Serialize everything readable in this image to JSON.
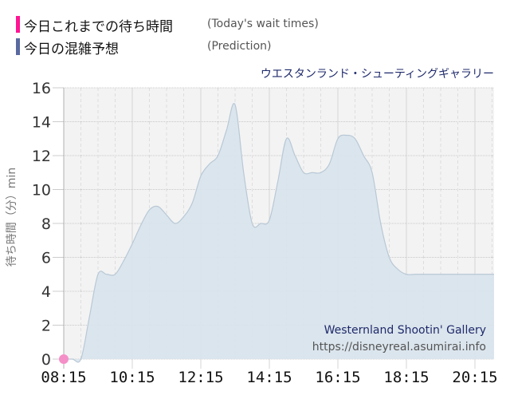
{
  "legend": {
    "items": [
      {
        "label": "今日これまでの待ち時間",
        "sub": "(Today's wait times)",
        "color": "#ff1493"
      },
      {
        "label": "今日の混雑予想",
        "sub": "(Prediction)",
        "color": "#5a6aa0"
      }
    ]
  },
  "ride_title": "ウエスタンランド・シューティングギャラリー",
  "y_axis_label": "待ち時間（分）min",
  "watermark": {
    "name": "Westernland Shootin' Gallery",
    "url": "https://disneyreal.asumirai.info"
  },
  "colors": {
    "area_fill": "#d8e3ec",
    "area_line": "#b8c8d6",
    "plot_bg": "#f3f3f3",
    "today_dot": "#f48fc8"
  },
  "chart_data": {
    "type": "area",
    "title": "ウエスタンランド・シューティングギャラリー",
    "xlabel": "",
    "ylabel": "待ち時間（分）min",
    "ylim": [
      0,
      16
    ],
    "yticks": [
      0,
      2,
      4,
      6,
      8,
      10,
      12,
      14,
      16
    ],
    "xticks": [
      "08:15",
      "10:15",
      "12:15",
      "14:15",
      "16:15",
      "18:15",
      "20:15"
    ],
    "grid": true,
    "legend_position": "top-left",
    "series": [
      {
        "name": "今日これまでの待ち時間 (Today's wait times)",
        "x": [
          "08:15"
        ],
        "values": [
          0
        ]
      },
      {
        "name": "今日の混雑予想 (Prediction)",
        "x": [
          "08:15",
          "08:30",
          "08:45",
          "09:00",
          "09:15",
          "09:30",
          "09:45",
          "10:00",
          "10:15",
          "10:30",
          "10:45",
          "11:00",
          "11:15",
          "11:30",
          "11:45",
          "12:00",
          "12:15",
          "12:30",
          "12:45",
          "13:00",
          "13:15",
          "13:30",
          "13:45",
          "14:00",
          "14:15",
          "14:30",
          "14:45",
          "15:00",
          "15:15",
          "15:30",
          "15:45",
          "16:00",
          "16:15",
          "16:30",
          "16:45",
          "17:00",
          "17:15",
          "17:30",
          "17:45",
          "18:00",
          "18:15",
          "18:30",
          "18:45",
          "19:00",
          "19:15",
          "19:30",
          "19:45",
          "20:00",
          "20:15",
          "20:30",
          "20:45"
        ],
        "values": [
          0,
          0,
          0,
          2.5,
          5,
          5,
          5,
          5.8,
          6.8,
          7.9,
          8.8,
          9,
          8.5,
          8,
          8.4,
          9.2,
          10.8,
          11.5,
          12,
          13.5,
          15,
          11,
          8,
          8,
          8.2,
          10.5,
          13,
          12,
          11,
          11,
          11,
          11.5,
          13,
          13.2,
          13,
          12,
          11,
          8,
          6,
          5.3,
          5,
          5,
          5,
          5,
          5,
          5,
          5,
          5,
          5,
          5,
          5
        ]
      }
    ]
  }
}
